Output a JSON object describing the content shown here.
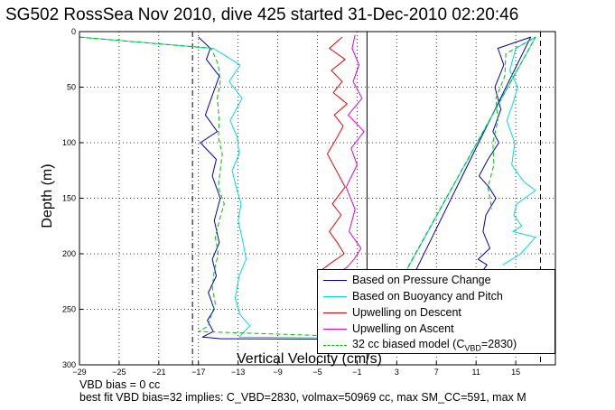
{
  "chart_data": {
    "type": "line",
    "title": "SG502 RossSea Nov 2010, dive 425 started 31-Dec-2010 02:20:46",
    "xlabel": "Vertical Velocity (cm/s)",
    "ylabel": "Depth (m)",
    "xlim": [
      -29,
      19
    ],
    "ylim": [
      0,
      300
    ],
    "y_reversed": true,
    "grid": true,
    "x_ticks": [
      -29,
      -25,
      -21,
      -17,
      -13,
      -9,
      -5,
      -1,
      3,
      7,
      11,
      15
    ],
    "y_ticks": [
      0,
      50,
      100,
      150,
      200,
      250,
      300
    ],
    "vertical_lines": [
      {
        "x": -17.6,
        "style": "dash-dot"
      },
      {
        "x": 0.0,
        "style": "solid"
      },
      {
        "x": 17.5,
        "style": "dashed"
      }
    ],
    "legend_position": "bottom-right",
    "series": [
      {
        "name": "Based on Pressure Change",
        "color": "#0000bb",
        "x": [
          -17,
          -15.8,
          -16.2,
          -14.9,
          -15.5,
          -16.3,
          -15.1,
          -16.8,
          -15.2,
          -15.6,
          -14.8,
          -15.4,
          -14.9,
          -15.6,
          -15.2,
          -16.0,
          -15.4,
          -16.1,
          -15.5,
          -16.6,
          -15.3,
          -14.8,
          1.5,
          16.5,
          13.2,
          13.8,
          12.9,
          13.5,
          12.7,
          13.3,
          12.2,
          11.3,
          12.3,
          13.0,
          12.0,
          11.7,
          12.4,
          11.2,
          12.1,
          11.7,
          10.6
        ],
        "y": [
          5,
          15,
          25,
          40,
          55,
          75,
          90,
          100,
          115,
          130,
          150,
          170,
          190,
          205,
          220,
          235,
          250,
          260,
          270,
          275,
          276,
          276.5,
          277,
          5,
          15,
          30,
          50,
          70,
          90,
          100,
          115,
          130,
          140,
          150,
          165,
          180,
          195,
          205,
          210,
          215,
          218
        ]
      },
      {
        "name": "Based on Buoyancy and Pitch",
        "color": "#00dddd",
        "x": [
          -29,
          -15.5,
          -12.8,
          -13.9,
          -12.6,
          -13.8,
          -13.1,
          -12.9,
          -13.6,
          -13.2,
          -12.7,
          -13.0,
          -12.5,
          -12.2,
          -12.9,
          -13.3,
          -12.8,
          -11.8,
          -12.6,
          -12.9,
          0.2,
          17.0,
          15.0,
          14.4,
          15.2,
          14.7,
          14.1,
          14.9,
          14.6,
          15.8,
          17.0,
          15.1,
          14.8,
          15.6,
          14.7,
          17.0,
          15.5,
          13.7
        ],
        "y": [
          5,
          15,
          30,
          45,
          60,
          80,
          95,
          110,
          125,
          140,
          155,
          170,
          190,
          205,
          220,
          240,
          255,
          265,
          272,
          275,
          276,
          5,
          15,
          35,
          50,
          65,
          80,
          100,
          120,
          135,
          143,
          155,
          165,
          175,
          180,
          185,
          200,
          210
        ]
      },
      {
        "name": "Upwelling on Descent",
        "color": "#ee0000",
        "x": [
          -2.5,
          -3.8,
          -2.2,
          -3.6,
          -2.5,
          -3.4,
          -2.0,
          -3.3,
          -2.4,
          -3.0,
          -4.0,
          -3.1,
          -2.2,
          -3.5,
          -2.6,
          -3.8,
          -3.0,
          -2.3,
          -3.9,
          -4.6
        ],
        "y": [
          5,
          15,
          25,
          35,
          45,
          55,
          65,
          75,
          85,
          95,
          110,
          125,
          140,
          155,
          165,
          180,
          190,
          200,
          210,
          215
        ]
      },
      {
        "name": "Upwelling on Ascent",
        "color": "#dd00dd",
        "x": [
          -1.2,
          -1.5,
          -0.8,
          -1.4,
          -0.5,
          -1.9,
          -0.3,
          -1.6,
          -1.0,
          -2.1,
          -1.2,
          -1.8,
          -0.6,
          -1.3,
          -2.0,
          -2.5
        ],
        "y": [
          3,
          15,
          30,
          45,
          60,
          75,
          90,
          105,
          120,
          140,
          160,
          180,
          195,
          205,
          212,
          215
        ]
      },
      {
        "name": "32 cc biased model (C",
        "name_sub": "VBD",
        "name_tail": "=2830)",
        "color": "#00bb00",
        "x": [
          -29,
          -15.7,
          -15.0,
          -14.8,
          -15.1,
          -14.9,
          -15.0,
          -14.6,
          -14.8,
          -15.0,
          -14.4,
          -14.9,
          -15.3,
          -15.0,
          -15.4,
          -15.6,
          -15.3,
          -15.7,
          -16.0,
          -17.0,
          0.2,
          17.0,
          14.0,
          13.9,
          13.0,
          13.2,
          12.7,
          12.8,
          12.2,
          12.6
        ],
        "y": [
          5,
          15,
          30,
          45,
          60,
          80,
          95,
          110,
          125,
          140,
          155,
          170,
          185,
          200,
          215,
          230,
          245,
          255,
          265,
          270,
          275,
          5,
          20,
          40,
          60,
          80,
          100,
          120,
          140,
          160
        ]
      }
    ]
  },
  "footnote": {
    "line1": "VBD bias = 0 cc",
    "line2": "best fit VBD bias=32 implies: C_VBD=2830, volmax=50969 cc, max SM_CC=591, max M"
  }
}
